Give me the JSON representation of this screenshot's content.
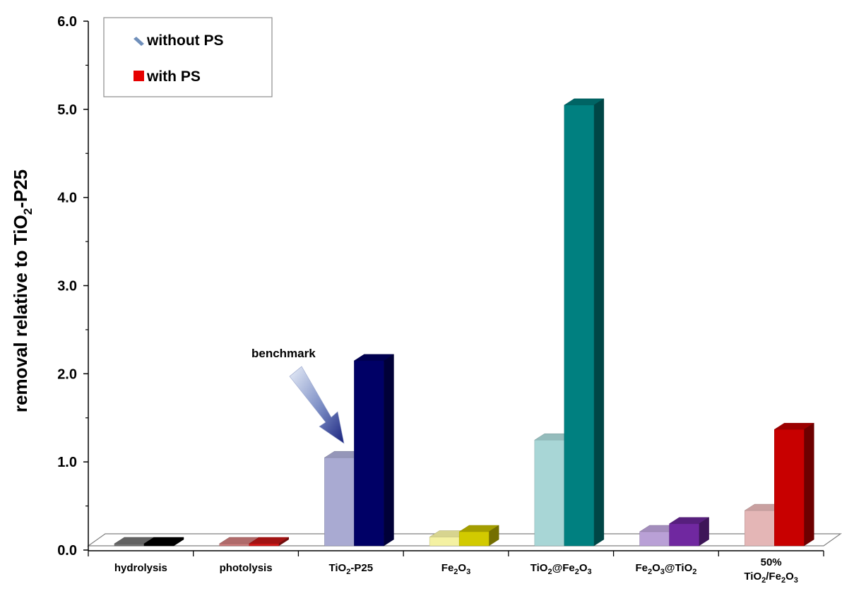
{
  "chart_data": {
    "type": "bar",
    "title": "",
    "xlabel": "",
    "ylabel": {
      "prefix": "removal relative to TiO",
      "subscript": "2",
      "suffix": "-P25"
    },
    "ylim": [
      0,
      6
    ],
    "yticks": [
      "0.0",
      "1.0",
      "2.0",
      "3.0",
      "4.0",
      "5.0",
      "6.0"
    ],
    "categories": [
      {
        "id": "hydrolysis",
        "parts": [
          [
            "hydrolysis",
            false
          ]
        ]
      },
      {
        "id": "photolysis",
        "parts": [
          [
            "photolysis",
            false
          ]
        ]
      },
      {
        "id": "tio2-p25",
        "parts": [
          [
            "TiO",
            false
          ],
          [
            "2",
            true
          ],
          [
            "-P25",
            false
          ]
        ]
      },
      {
        "id": "fe2o3",
        "parts": [
          [
            "Fe",
            false
          ],
          [
            "2",
            true
          ],
          [
            "O",
            false
          ],
          [
            "3",
            true
          ]
        ]
      },
      {
        "id": "tio2-at-fe2o3",
        "parts": [
          [
            "TiO",
            false
          ],
          [
            "2",
            true
          ],
          [
            "@Fe",
            false
          ],
          [
            "2",
            true
          ],
          [
            "O",
            false
          ],
          [
            "3",
            true
          ]
        ]
      },
      {
        "id": "fe2o3-at-tio2",
        "parts": [
          [
            "Fe",
            false
          ],
          [
            "2",
            true
          ],
          [
            "O",
            false
          ],
          [
            "3",
            true
          ],
          [
            "@TiO",
            false
          ],
          [
            "2",
            true
          ]
        ]
      },
      {
        "id": "50pct-tio2-fe2o3",
        "line1": "50%",
        "parts": [
          [
            "TiO",
            false
          ],
          [
            "2",
            true
          ],
          [
            "/Fe",
            false
          ],
          [
            "2",
            true
          ],
          [
            "O",
            false
          ],
          [
            "3",
            true
          ]
        ]
      }
    ],
    "series": [
      {
        "name": "without PS",
        "values": [
          0.0,
          0.0,
          1.0,
          0.1,
          1.2,
          0.16,
          0.4
        ]
      },
      {
        "name": "with PS",
        "values": [
          0.0,
          0.0,
          2.1,
          0.16,
          5.0,
          0.25,
          1.32
        ]
      }
    ],
    "bar_colors": {
      "without PS": [
        "#707070",
        "#c87a7a",
        "#a9aad2",
        "#f4f1a2",
        "#a8d6d6",
        "#b9a0d6",
        "#e4b6b6"
      ],
      "with PS": [
        "#000000",
        "#d01818",
        "#000066",
        "#d2ca00",
        "#008080",
        "#7028a0",
        "#c80000"
      ]
    },
    "legend": {
      "placement": "top-left",
      "entries": [
        {
          "label": "without PS",
          "color": "#6f8fba"
        },
        {
          "label": "with PS",
          "color": "#e60000"
        }
      ]
    },
    "annotations": [
      {
        "text": "benchmark",
        "target": "TiO2-P25 without PS"
      }
    ],
    "grid": false
  }
}
